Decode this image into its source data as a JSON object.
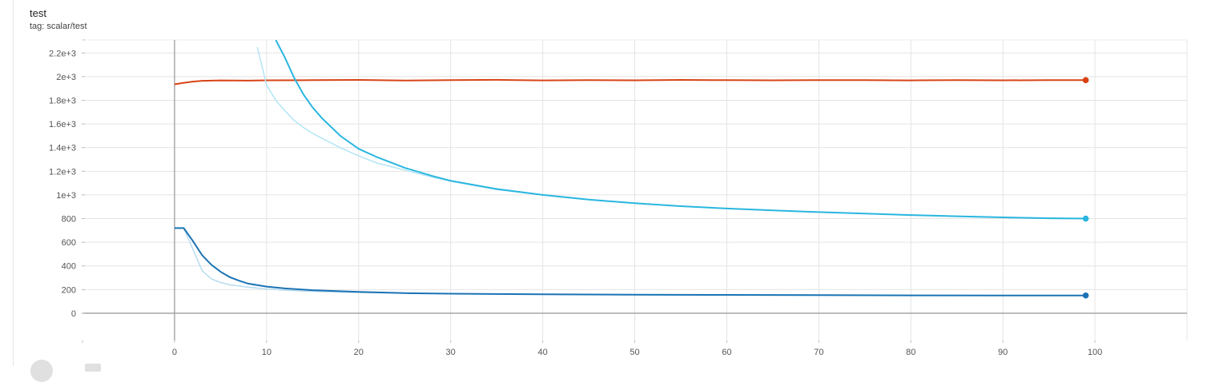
{
  "card": {
    "title": "test",
    "tag": "tag: scalar/test"
  },
  "chart_data": {
    "type": "line",
    "title": "test",
    "subtitle": "tag: scalar/test",
    "xlim": [
      -10,
      110
    ],
    "ylim": [
      -230,
      2310
    ],
    "x_ticks": [
      0,
      10,
      20,
      30,
      40,
      50,
      60,
      70,
      80,
      90,
      100
    ],
    "x_tick_labels": [
      "0",
      "10",
      "20",
      "30",
      "40",
      "50",
      "60",
      "70",
      "80",
      "90",
      "100"
    ],
    "y_ticks": [
      0,
      200,
      400,
      600,
      800,
      1000,
      1200,
      1400,
      1600,
      1800,
      2000,
      2200
    ],
    "y_tick_labels": [
      "0",
      "200",
      "400",
      "600",
      "800",
      "1e+3",
      "1.2e+3",
      "1.4e+3",
      "1.6e+3",
      "1.8e+3",
      "2e+3",
      "2.2e+3"
    ],
    "grid": true,
    "series": [
      {
        "color": "#d84315",
        "x": [
          0,
          1,
          2,
          3,
          5,
          8,
          10,
          15,
          20,
          25,
          30,
          35,
          40,
          45,
          50,
          55,
          60,
          65,
          70,
          75,
          80,
          85,
          90,
          95,
          99
        ],
        "y": [
          1935,
          1948,
          1958,
          1965,
          1968,
          1966,
          1969,
          1970,
          1972,
          1967,
          1970,
          1973,
          1968,
          1971,
          1969,
          1972,
          1970,
          1969,
          1971,
          1970,
          1968,
          1971,
          1969,
          1970,
          1970
        ],
        "raw_color": "#f0b8a4"
      },
      {
        "color": "#29b6e0",
        "x": [
          11,
          12,
          13,
          14,
          15,
          16,
          18,
          20,
          22,
          25,
          28,
          30,
          35,
          40,
          45,
          50,
          55,
          60,
          65,
          70,
          75,
          80,
          85,
          90,
          95,
          99
        ],
        "y": [
          2310,
          2160,
          1990,
          1850,
          1740,
          1650,
          1500,
          1390,
          1320,
          1230,
          1160,
          1120,
          1050,
          1000,
          960,
          930,
          905,
          885,
          870,
          855,
          842,
          830,
          820,
          810,
          803,
          800
        ],
        "raw_x": [
          9,
          10,
          11,
          12,
          13,
          14,
          15,
          16,
          18,
          20,
          22,
          25,
          28,
          30,
          35,
          40,
          45,
          50,
          55,
          60,
          70,
          80,
          90,
          99
        ],
        "raw_y": [
          2250,
          1930,
          1800,
          1710,
          1630,
          1570,
          1520,
          1480,
          1400,
          1330,
          1270,
          1210,
          1150,
          1115,
          1045,
          1000,
          960,
          930,
          905,
          885,
          855,
          830,
          810,
          800
        ],
        "raw_color": "#b3e5f5"
      },
      {
        "color": "#1a73b5",
        "x": [
          0,
          1,
          2,
          3,
          4,
          5,
          6,
          7,
          8,
          10,
          12,
          15,
          20,
          25,
          30,
          40,
          50,
          60,
          70,
          80,
          90,
          99
        ],
        "y": [
          720,
          720,
          610,
          490,
          410,
          350,
          305,
          275,
          250,
          225,
          210,
          195,
          180,
          170,
          165,
          160,
          157,
          155,
          153,
          151,
          150,
          150
        ],
        "raw_x": [
          0,
          1,
          2,
          3,
          4,
          5,
          6,
          7,
          8,
          10,
          12,
          15,
          20,
          30,
          40,
          50,
          60,
          70,
          80,
          90,
          99
        ],
        "raw_y": [
          720,
          720,
          540,
          360,
          290,
          260,
          240,
          230,
          220,
          205,
          195,
          185,
          175,
          165,
          160,
          156,
          154,
          152,
          151,
          150,
          150
        ],
        "raw_color": "#b7dcef"
      }
    ]
  }
}
